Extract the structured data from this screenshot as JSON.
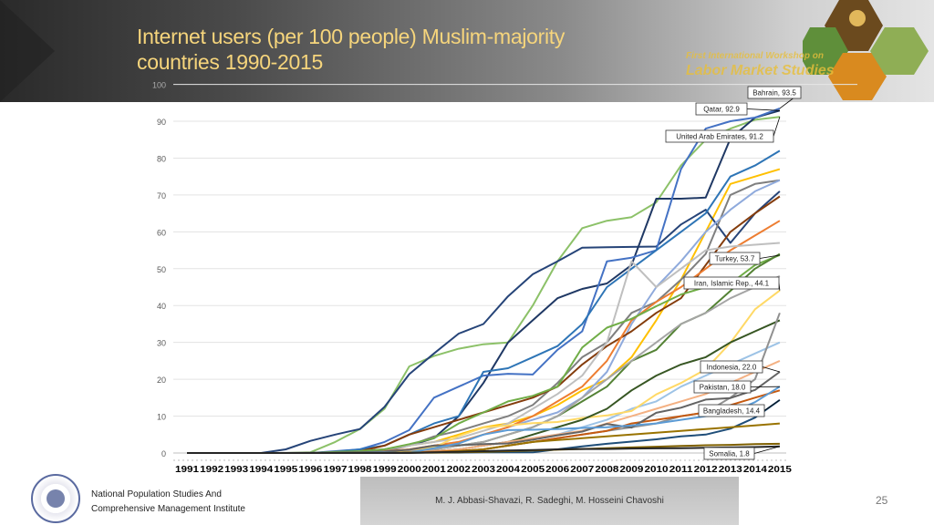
{
  "slide": {
    "title_line1": "Internet users (per 100 people) Muslim-majority",
    "title_line2": "countries 1990-2015",
    "brand_line1": "First International Workshop on",
    "brand_line2": "Labor Market Studies",
    "institute_line1": "National Population Studies And",
    "institute_line2": "Comprehensive Management Institute",
    "authors": "M. J. Abbasi-Shavazi, R. Sadeghi, M. Hosseini Chavoshi",
    "page_number": "25"
  },
  "chart_data": {
    "type": "line",
    "title": "",
    "xlabel": "",
    "ylabel": "",
    "ylim": [
      0,
      100
    ],
    "yticks": [
      0,
      10,
      20,
      30,
      40,
      50,
      60,
      70,
      80,
      90,
      100
    ],
    "grid": true,
    "legend": "none",
    "categories": [
      "1991",
      "1992",
      "1993",
      "1994",
      "1995",
      "1996",
      "1997",
      "1998",
      "1999",
      "2000",
      "2001",
      "2002",
      "2003",
      "2004",
      "2005",
      "2006",
      "2007",
      "2008",
      "2009",
      "2010",
      "2011",
      "2012",
      "2013",
      "2014",
      "2015"
    ],
    "series": [
      {
        "color": "#9dc3e6",
        "values": [
          0,
          0,
          0,
          0,
          0,
          0,
          0,
          0,
          0,
          0.3,
          0.6,
          1,
          2,
          3,
          4,
          5,
          7,
          9,
          12,
          14,
          18,
          21,
          24,
          27,
          30
        ]
      },
      {
        "color": "#ffc000",
        "values": [
          0,
          0,
          0,
          0,
          0,
          0,
          0,
          0.5,
          1,
          2,
          3,
          5,
          7,
          8,
          10,
          13,
          17,
          20,
          26,
          36,
          47,
          60,
          73,
          75,
          77
        ]
      },
      {
        "color": "#8cc168",
        "name": "United Arab Emirates",
        "label": "United Arab Emirates, 91.2",
        "values": [
          0,
          0,
          0,
          0,
          0,
          0.2,
          3,
          6.5,
          12,
          23.5,
          26.3,
          28.3,
          29.5,
          30,
          40,
          52,
          61,
          63,
          64,
          68,
          78,
          85,
          88,
          90.4,
          91.2
        ]
      },
      {
        "color": "#264478",
        "values": [
          0,
          0,
          0,
          0,
          1,
          3.3,
          5,
          6.5,
          12.5,
          21.4,
          27,
          32.4,
          35,
          42.5,
          48.5,
          52,
          55.7,
          55.8,
          55.9,
          56,
          62,
          66,
          57,
          65,
          71
        ]
      },
      {
        "color": "#1f3864",
        "name": "Qatar",
        "label": "Qatar, 92.9",
        "values": [
          0,
          0,
          0,
          0,
          0,
          0,
          0.2,
          0.5,
          1,
          2,
          4,
          10,
          19,
          30,
          36,
          42,
          44.5,
          46,
          51,
          69,
          69,
          69.3,
          85.3,
          91,
          92.9
        ]
      },
      {
        "color": "#4472c4",
        "name": "Bahrain",
        "label": "Bahrain, 93.5",
        "values": [
          0,
          0,
          0,
          0,
          0,
          0,
          0.5,
          1,
          3,
          6.2,
          15,
          18,
          21,
          21.5,
          21.3,
          28,
          33,
          52,
          53,
          55,
          77,
          88,
          90,
          91,
          93.5
        ]
      },
      {
        "color": "#2e75b6",
        "values": [
          0,
          0,
          0,
          0,
          0,
          0,
          0.3,
          1,
          2,
          5,
          8,
          10,
          22,
          23,
          26,
          29,
          35,
          45,
          50,
          55,
          60,
          65,
          75,
          78,
          82
        ]
      },
      {
        "color": "#7f7f7f",
        "values": [
          0,
          0,
          0,
          0,
          0,
          0,
          0,
          0,
          0.5,
          2,
          4.5,
          6,
          8,
          10,
          13,
          19,
          26,
          30,
          38,
          41,
          47,
          54,
          70,
          73,
          74
        ]
      },
      {
        "color": "#8faadc",
        "values": [
          0,
          0,
          0,
          0,
          0,
          0,
          0,
          0,
          0.2,
          1,
          2,
          3,
          5,
          7,
          9,
          11,
          15,
          22,
          35,
          45,
          52,
          60,
          66,
          71,
          74
        ]
      },
      {
        "color": "#843c0c",
        "values": [
          0,
          0,
          0,
          0,
          0,
          0,
          0.1,
          0.5,
          2,
          5,
          7,
          9,
          11,
          13,
          15,
          18,
          24,
          29,
          33,
          38,
          42,
          51,
          60,
          65,
          69.6
        ]
      },
      {
        "color": "#ed7d31",
        "values": [
          0,
          0,
          0,
          0,
          0,
          0,
          0,
          0.2,
          0.5,
          1,
          2,
          3,
          5,
          7,
          10,
          14,
          18,
          25,
          36,
          41,
          45,
          50,
          55,
          59,
          63
        ]
      },
      {
        "color": "#bfbfbf",
        "values": [
          0,
          0,
          0,
          0,
          0,
          0,
          0,
          0.5,
          1,
          2,
          3,
          4,
          6,
          8,
          12,
          16,
          21,
          30,
          52,
          45,
          50,
          55,
          56,
          56.5,
          57
        ]
      },
      {
        "color": "#70ad47",
        "name": "Turkey",
        "label": "Turkey, 53.7",
        "values": [
          0,
          0,
          0,
          0,
          0,
          0,
          0.3,
          0.5,
          1,
          2.4,
          4,
          8,
          11,
          14,
          15.5,
          18,
          28.6,
          34,
          36.4,
          39.8,
          43,
          45,
          46,
          51,
          53.7
        ]
      },
      {
        "color": "#548235",
        "values": [
          0,
          0,
          0,
          0,
          0,
          0,
          0,
          0,
          0.1,
          0.5,
          1,
          2,
          3,
          5,
          7,
          10,
          14,
          18,
          25,
          28,
          35,
          38,
          44,
          50,
          54
        ]
      },
      {
        "color": "#a5a5a5",
        "values": [
          0,
          0,
          0,
          0,
          0,
          0,
          0,
          0,
          0.2,
          0.5,
          1,
          2,
          3,
          5,
          7,
          10,
          15,
          20,
          25,
          30,
          35,
          38,
          42,
          45,
          48
        ]
      },
      {
        "color": "#ffd966",
        "name": "Iran, Islamic Rep.",
        "label": "Iran, Islamic Rep., 44.1",
        "values": [
          0,
          0,
          0,
          0,
          0,
          0,
          0,
          0,
          0.1,
          0.9,
          1.5,
          4.6,
          6.9,
          7.5,
          8.1,
          8.4,
          9.5,
          10.2,
          11.4,
          15.9,
          19,
          22.7,
          29.9,
          39,
          44.1
        ]
      },
      {
        "color": "#375623",
        "values": [
          0,
          0,
          0,
          0,
          0,
          0,
          0,
          0,
          0,
          0.2,
          0.5,
          1,
          2,
          3,
          5,
          7,
          9,
          12,
          17,
          21,
          24,
          26,
          30,
          33,
          36
        ]
      },
      {
        "color": "#909090",
        "values": [
          0,
          0,
          0,
          0,
          0,
          0,
          0,
          0,
          0,
          0.1,
          0.3,
          0.5,
          1,
          2,
          3,
          4,
          5,
          6,
          7,
          8,
          10,
          11,
          15,
          20,
          38
        ]
      },
      {
        "color": "#f4b183",
        "values": [
          0,
          0,
          0,
          0,
          0,
          0,
          0,
          0,
          0,
          0.2,
          0.5,
          1,
          2,
          3,
          4,
          5,
          6,
          8,
          10,
          12,
          14,
          16,
          19,
          22,
          25
        ]
      },
      {
        "color": "#c55a11",
        "values": [
          0,
          0,
          0,
          0,
          0,
          0,
          0,
          0,
          0,
          0.1,
          0.3,
          0.6,
          1,
          2,
          3,
          4,
          5,
          6,
          8,
          9,
          10,
          11,
          13,
          15,
          17
        ]
      },
      {
        "color": "#636363",
        "name": "Indonesia",
        "label": "Indonesia, 22.0",
        "values": [
          0,
          0,
          0,
          0,
          0.02,
          0.06,
          0.1,
          0.2,
          0.4,
          0.9,
          2,
          2.1,
          2.4,
          2.6,
          3.6,
          4.8,
          5.8,
          7.9,
          6.9,
          10.9,
          12.3,
          14.5,
          14.9,
          17.1,
          22
        ]
      },
      {
        "color": "#5b9bd5",
        "name": "Pakistan",
        "label": "Pakistan, 18.0",
        "values": [
          0,
          0,
          0,
          0,
          0,
          0,
          0,
          0,
          0.1,
          0.1,
          1.3,
          2.6,
          5,
          6.2,
          6.3,
          6.5,
          6.8,
          7,
          7.5,
          8,
          9,
          10,
          10.9,
          13.8,
          18
        ]
      },
      {
        "color": "#1f4e79",
        "name": "Bangladesh",
        "label": "Bangladesh, 14.4",
        "values": [
          0,
          0,
          0,
          0,
          0,
          0,
          0,
          0,
          0,
          0.1,
          0.1,
          0.1,
          0.2,
          0.2,
          0.2,
          1,
          1.8,
          2.5,
          3.1,
          3.7,
          4.5,
          5,
          6.6,
          9.6,
          14.4
        ]
      },
      {
        "color": "#997300",
        "values": [
          0,
          0,
          0,
          0,
          0,
          0,
          0,
          0,
          0,
          0.1,
          0.2,
          0.5,
          1,
          2,
          3,
          3.5,
          4,
          4.5,
          5,
          5.5,
          6,
          6.5,
          7,
          7.5,
          8
        ]
      },
      {
        "color": "#7f6000",
        "values": [
          0,
          0,
          0,
          0,
          0,
          0,
          0,
          0,
          0,
          0.05,
          0.1,
          0.2,
          0.3,
          0.5,
          0.7,
          0.9,
          1.1,
          1.3,
          1.5,
          1.7,
          1.9,
          2.1,
          2.2,
          2.4,
          2.5
        ]
      },
      {
        "color": "#262626",
        "name": "Somalia",
        "label": "Somalia, 1.8",
        "values": [
          0,
          0,
          0,
          0,
          0,
          0,
          0,
          0,
          0,
          0,
          0.2,
          0.3,
          0.5,
          0.7,
          0.8,
          1,
          1.1,
          1.1,
          1.2,
          1.25,
          1.3,
          1.4,
          1.5,
          1.6,
          1.8
        ]
      }
    ]
  }
}
